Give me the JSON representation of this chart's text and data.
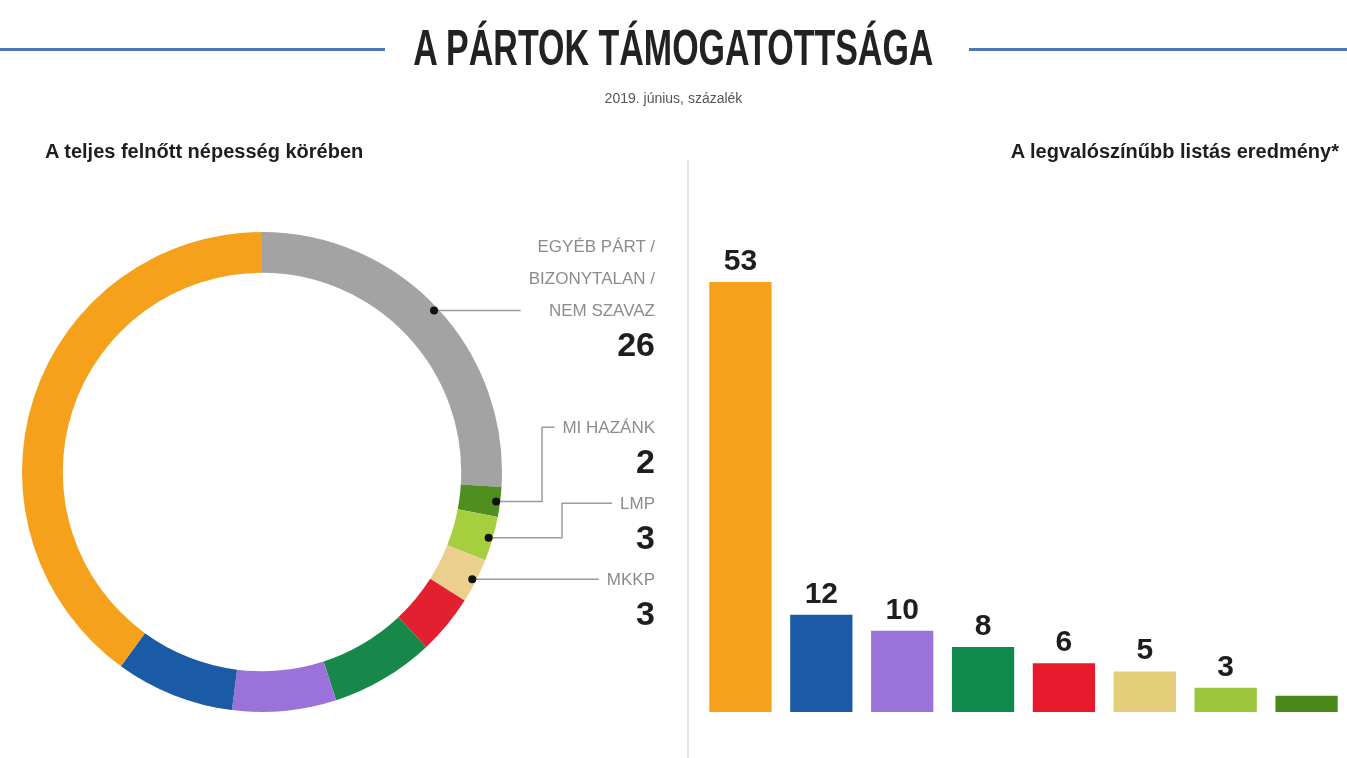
{
  "chart_data": [
    {
      "type": "other",
      "title": "A PÁRTOK TÁMOGATOTTSÁGA",
      "subtitle": "2019. június, százalék"
    },
    {
      "type": "donut",
      "title": "A teljes felnőtt népesség körében",
      "categories": [
        "EGYÉB PÁRT /\nBIZONYTALAN /\nNEM SZAVAZ",
        "MI HAZÁNK",
        "LMP",
        "MKKP",
        null,
        null,
        null,
        null,
        null
      ],
      "values": [
        26,
        2,
        3,
        3,
        4,
        7,
        7,
        8,
        40
      ],
      "colors": [
        "#a3a3a3",
        "#4f8f1f",
        "#a6cf3f",
        "#ead08c",
        "#e3202f",
        "#17884a",
        "#9b72d9",
        "#1b5aa6",
        "#f5a11c"
      ],
      "value_labels": [
        "26",
        "2",
        "3",
        "3",
        null,
        null,
        null,
        null,
        null
      ]
    },
    {
      "type": "bar",
      "title": "A legvalószínűbb listás eredmény*",
      "categories": [
        null,
        null,
        null,
        null,
        null,
        null,
        null,
        null
      ],
      "values": [
        53,
        12,
        10,
        8,
        6,
        5,
        3,
        2
      ],
      "colors": [
        "#f5a11c",
        "#1b5aa6",
        "#9b72d9",
        "#0f8a4a",
        "#e8192c",
        "#e3cf7a",
        "#9cc63c",
        "#4a8a1a"
      ],
      "value_labels": [
        "53",
        "12",
        "10",
        "8",
        "6",
        "5",
        "3",
        null
      ]
    }
  ]
}
